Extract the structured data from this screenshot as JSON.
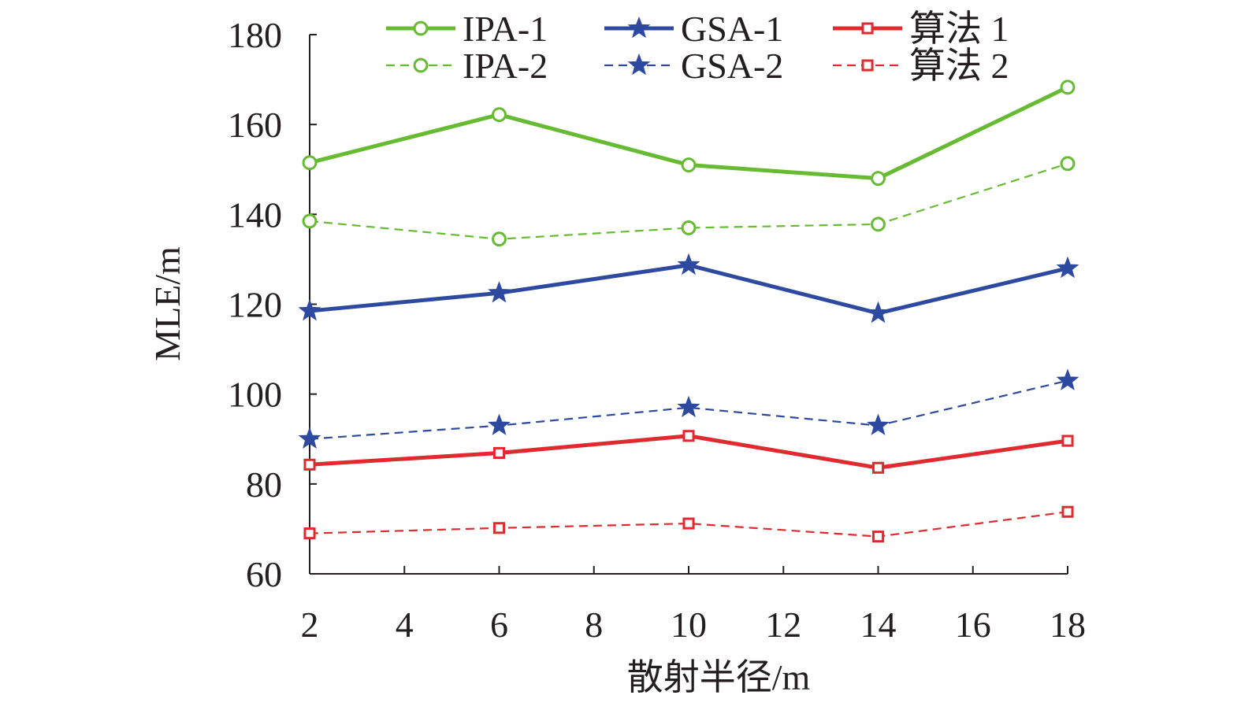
{
  "chart_data": {
    "type": "line",
    "title": "",
    "xlabel": "散射半径/m",
    "ylabel": "MLE/m",
    "x": [
      2,
      6,
      10,
      14,
      18
    ],
    "xlim": [
      2,
      18
    ],
    "ylim": [
      60,
      180
    ],
    "xticks": [
      2,
      4,
      6,
      8,
      10,
      12,
      14,
      16,
      18
    ],
    "yticks": [
      60,
      80,
      100,
      120,
      140,
      160,
      180
    ],
    "grid": false,
    "legend_position": "top",
    "series": [
      {
        "name": "IPA-1",
        "values": [
          151.5,
          162.2,
          151.0,
          148.0,
          168.3
        ],
        "color": "#66bb33",
        "marker": "circle",
        "line": "solid"
      },
      {
        "name": "IPA-2",
        "values": [
          138.5,
          134.5,
          137.0,
          137.8,
          151.3
        ],
        "color": "#66bb33",
        "marker": "circle",
        "line": "dashed"
      },
      {
        "name": "GSA-1",
        "values": [
          118.5,
          122.5,
          128.7,
          118.0,
          128.0
        ],
        "color": "#2e4aa0",
        "marker": "star",
        "line": "solid"
      },
      {
        "name": "GSA-2",
        "values": [
          90.0,
          93.0,
          97.0,
          93.0,
          103.0
        ],
        "color": "#2e4aa0",
        "marker": "star",
        "line": "dashed"
      },
      {
        "name": "算法 1",
        "values": [
          84.3,
          86.9,
          90.7,
          83.6,
          89.6
        ],
        "color": "#e02a2f",
        "marker": "square",
        "line": "solid"
      },
      {
        "name": "算法 2",
        "values": [
          69.0,
          70.2,
          71.2,
          68.3,
          73.8
        ],
        "color": "#e02a2f",
        "marker": "square",
        "line": "dashed"
      }
    ]
  }
}
